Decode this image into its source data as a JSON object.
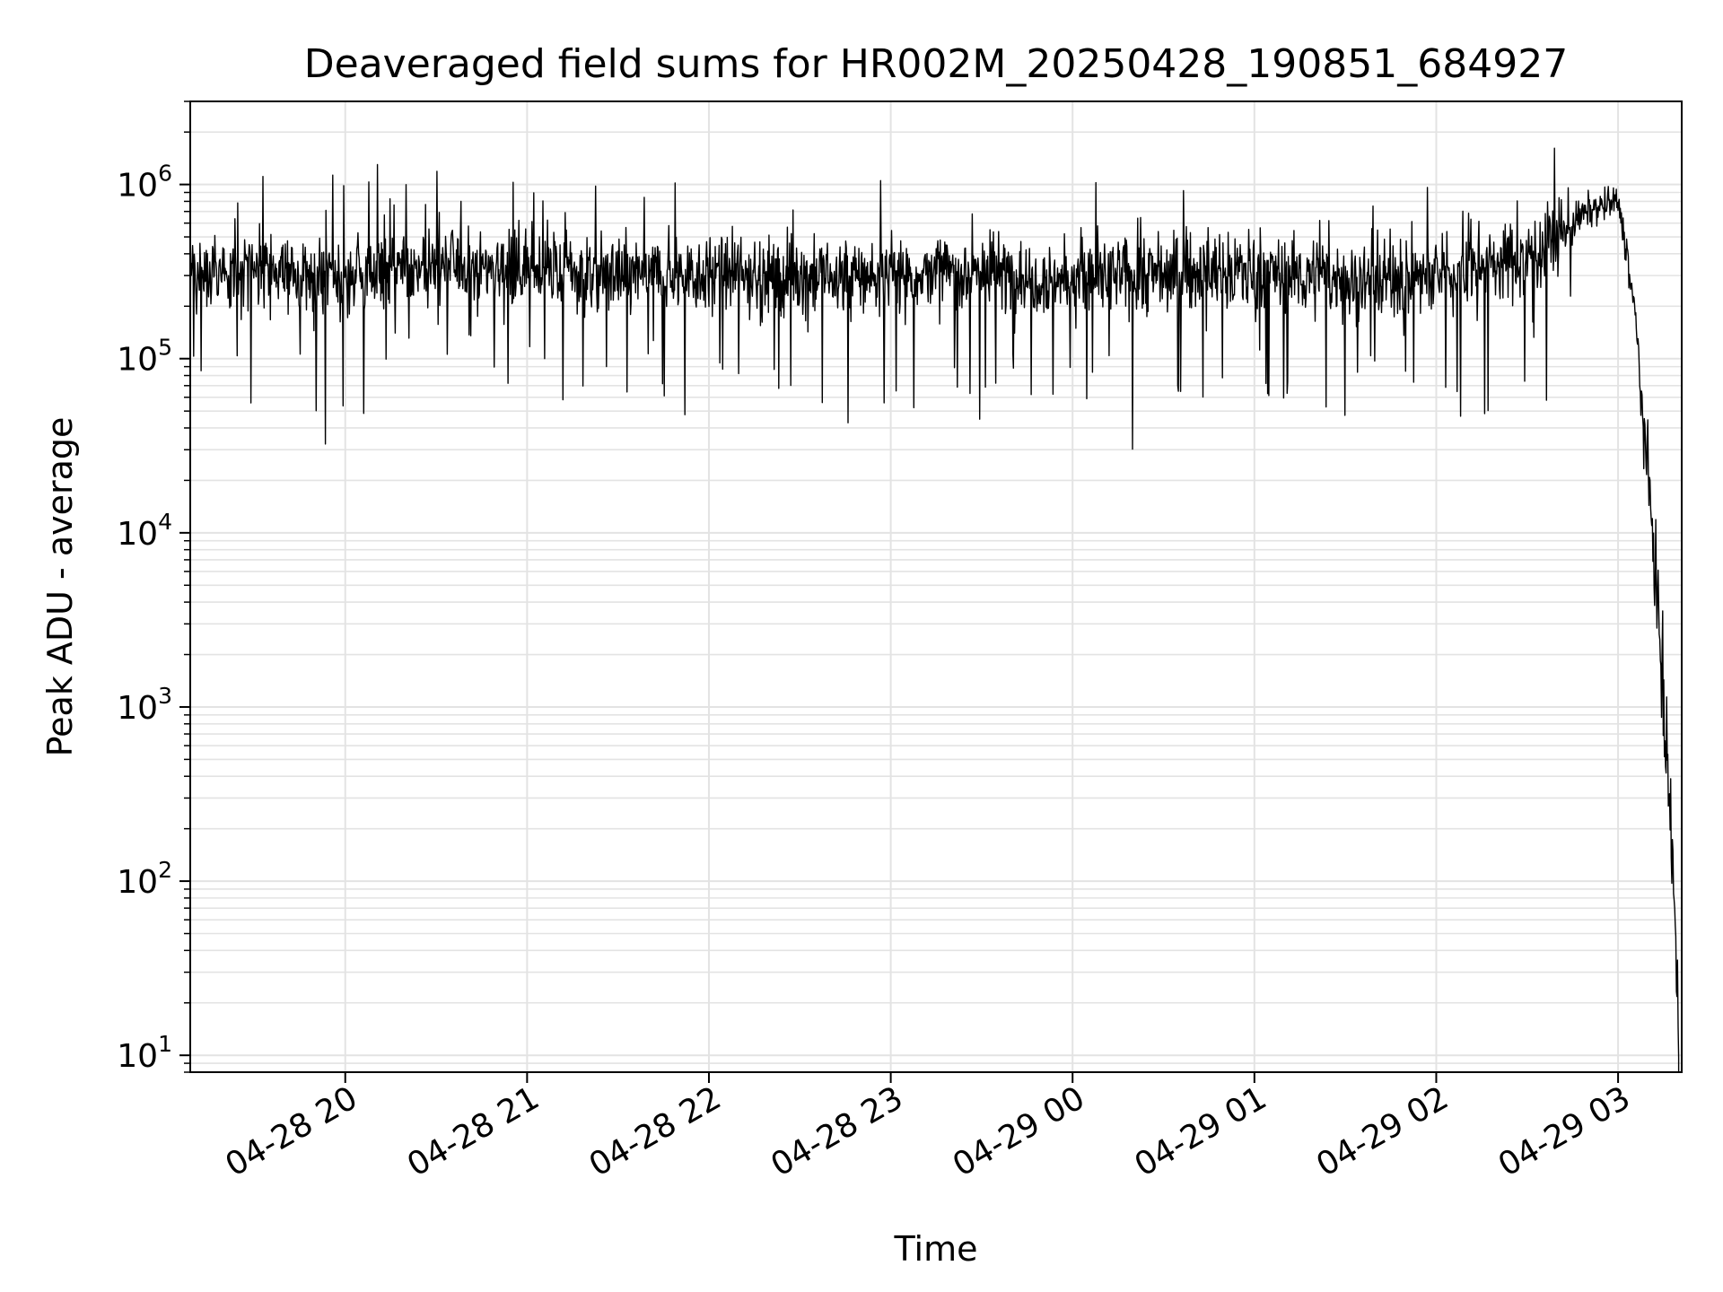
{
  "chart_data": {
    "type": "line",
    "title": "Deaveraged field sums for HR002M_20250428_190851_684927",
    "xlabel": "Time",
    "ylabel": "Peak ADU - average",
    "x_scale": "time",
    "y_scale": "log",
    "xlim": [
      "2025-04-28 19:08:51",
      "2025-04-29 03:21:00"
    ],
    "ylim": [
      8,
      3000000
    ],
    "x_tick_labels": [
      "04-28 20",
      "04-28 21",
      "04-28 22",
      "04-28 23",
      "04-29 00",
      "04-29 01",
      "04-29 02",
      "04-29 03"
    ],
    "y_tick_labels": [
      {
        "base": "10",
        "exp": "1"
      },
      {
        "base": "10",
        "exp": "2"
      },
      {
        "base": "10",
        "exp": "3"
      },
      {
        "base": "10",
        "exp": "4"
      },
      {
        "base": "10",
        "exp": "5"
      },
      {
        "base": "10",
        "exp": "6"
      }
    ],
    "grid": true,
    "line_color": "#000000",
    "grid_color": "#e3e3e3",
    "series": [
      {
        "x": [
          "2025-04-28 19:08:51",
          "2025-04-28 19:30:00",
          "2025-04-28 20:00:00",
          "2025-04-28 20:30:00",
          "2025-04-28 21:00:00",
          "2025-04-28 21:30:00",
          "2025-04-28 22:00:00",
          "2025-04-28 22:30:00",
          "2025-04-28 23:00:00",
          "2025-04-28 23:30:00",
          "2025-04-29 00:00:00",
          "2025-04-29 00:30:00",
          "2025-04-29 01:00:00",
          "2025-04-29 01:30:00",
          "2025-04-29 02:00:00",
          "2025-04-29 02:30:00",
          "2025-04-29 02:50:00",
          "2025-04-29 03:00:00",
          "2025-04-29 03:03:00",
          "2025-04-29 03:06:00",
          "2025-04-29 03:09:00",
          "2025-04-29 03:12:00",
          "2025-04-29 03:14:00",
          "2025-04-29 03:16:00",
          "2025-04-29 03:18:00",
          "2025-04-29 03:19:00",
          "2025-04-29 03:20:00"
        ],
        "y": [
          300000,
          320000,
          280000,
          350000,
          330000,
          300000,
          310000,
          290000,
          300000,
          320000,
          280000,
          310000,
          320000,
          280000,
          300000,
          380000,
          700000,
          800000,
          400000,
          150000,
          30000,
          8000,
          2000,
          500,
          150,
          40,
          10
        ]
      }
    ]
  }
}
